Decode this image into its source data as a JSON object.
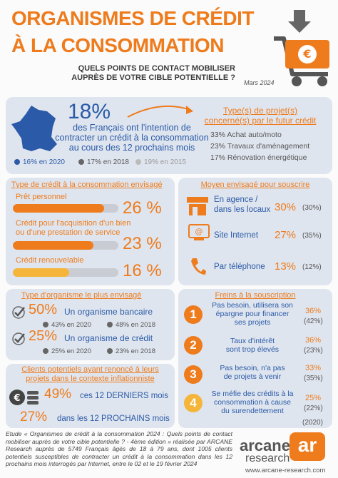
{
  "header": {
    "title_line1": "ORGANISMES DE CRÉDIT",
    "title_line2": "À LA CONSOMMATION",
    "subtitle_line1": "QUELS POINTS DE CONTACT MOBILISER",
    "subtitle_line2": "AUPRÈS DE VOTRE CIBLE POTENTIELLE ?",
    "date": "Mars 2024"
  },
  "intention": {
    "value": "18%",
    "text_lines": [
      "des Français ont l'intention de",
      "contracter un crédit à la consommation",
      "au cours des 12 prochains mois"
    ],
    "history": [
      "16% en 2020",
      "17% en 2018",
      "19% en 2015"
    ]
  },
  "projects": {
    "title_lines": [
      "Type(s) de projet(s)",
      "concerné(s) par le futur crédit"
    ],
    "items": [
      "33% Achat auto/moto",
      "23% Travaux d'aménagement",
      "17% Rénovation énergétique"
    ]
  },
  "credit_types": {
    "title": "Type de crédit à la consommation envisagé",
    "items": [
      {
        "label_lines": [
          "Prêt personnel"
        ],
        "value": 26,
        "label": "26 %"
      },
      {
        "label_lines": [
          "Crédit pour l'acquisition d'un bien",
          "ou d'une prestation de service"
        ],
        "value": 23,
        "label": "23 %"
      },
      {
        "label_lines": [
          "Crédit renouvelable"
        ],
        "value": 16,
        "label": "16 %"
      }
    ]
  },
  "channels": {
    "title": "Moyen envisagé pour souscrire",
    "items": [
      {
        "label_lines": [
          "En agence /",
          "dans les locaux"
        ],
        "value": "30%",
        "previous": "(30%)"
      },
      {
        "label_lines": [
          "Site Internet"
        ],
        "value": "27%",
        "previous": "(35%)"
      },
      {
        "label_lines": [
          "Par téléphone"
        ],
        "value": "13%",
        "previous": "(12%)"
      }
    ]
  },
  "organisms": {
    "title": "Type d'organisme le plus envisagé",
    "items": [
      {
        "value": "50%",
        "label": "Un organisme bancaire",
        "history": [
          "43% en 2020",
          "48% en 2018"
        ]
      },
      {
        "value": "25%",
        "label": "Un organisme de crédit",
        "history": [
          "25% en 2020",
          "23% en 2018"
        ]
      }
    ]
  },
  "renounced": {
    "title_lines": [
      "Clients potentiels ayant renoncé à leurs",
      "projets dans le contexte inflationniste"
    ],
    "items": [
      {
        "value": "49%",
        "label": "ces 12 DERNIERS mois"
      },
      {
        "value": "27%",
        "label": "dans les 12 PROCHAINS mois"
      }
    ]
  },
  "obstacles": {
    "title": "Freins à la souscription",
    "items": [
      {
        "number": "1",
        "text_lines": [
          "Pas besoin, utilisera son",
          "épargne pour financer",
          "ses projets"
        ],
        "value": "36%",
        "previous": "(42%)"
      },
      {
        "number": "2",
        "text_lines": [
          "Taux d'intérêt",
          "sont trop élevés"
        ],
        "value": "36%",
        "previous": "(23%)"
      },
      {
        "number": "3",
        "text_lines": [
          "Pas besoin, n'a pas",
          "de projets à venir"
        ],
        "value": "33%",
        "previous": "(35%)"
      },
      {
        "number": "4",
        "text_lines": [
          "Se méfie des crédits à la",
          "consommation à cause",
          "du surendettement"
        ],
        "value": "25%",
        "previous": "(22%)"
      }
    ],
    "previous_year": "(2020)"
  },
  "footer": {
    "study": "Etude « Organismes de crédit à la consommation 2024 : Quels points de contact mobiliser auprès de votre cible potentielle ? - 4ème édition » réalisée par ARCANE Research auprès de 5749 Français âgés de 18 à 79 ans, dont 1005 clients potentiels susceptibles de contracter un crédit à la consommation dans les 12 prochains mois interrogés par Internet, entre le 02 et le 19 février 2024",
    "logo_line1": "arcane",
    "logo_mark": "ar",
    "logo_line2": "research",
    "url": "www.arcane-research.com"
  }
}
